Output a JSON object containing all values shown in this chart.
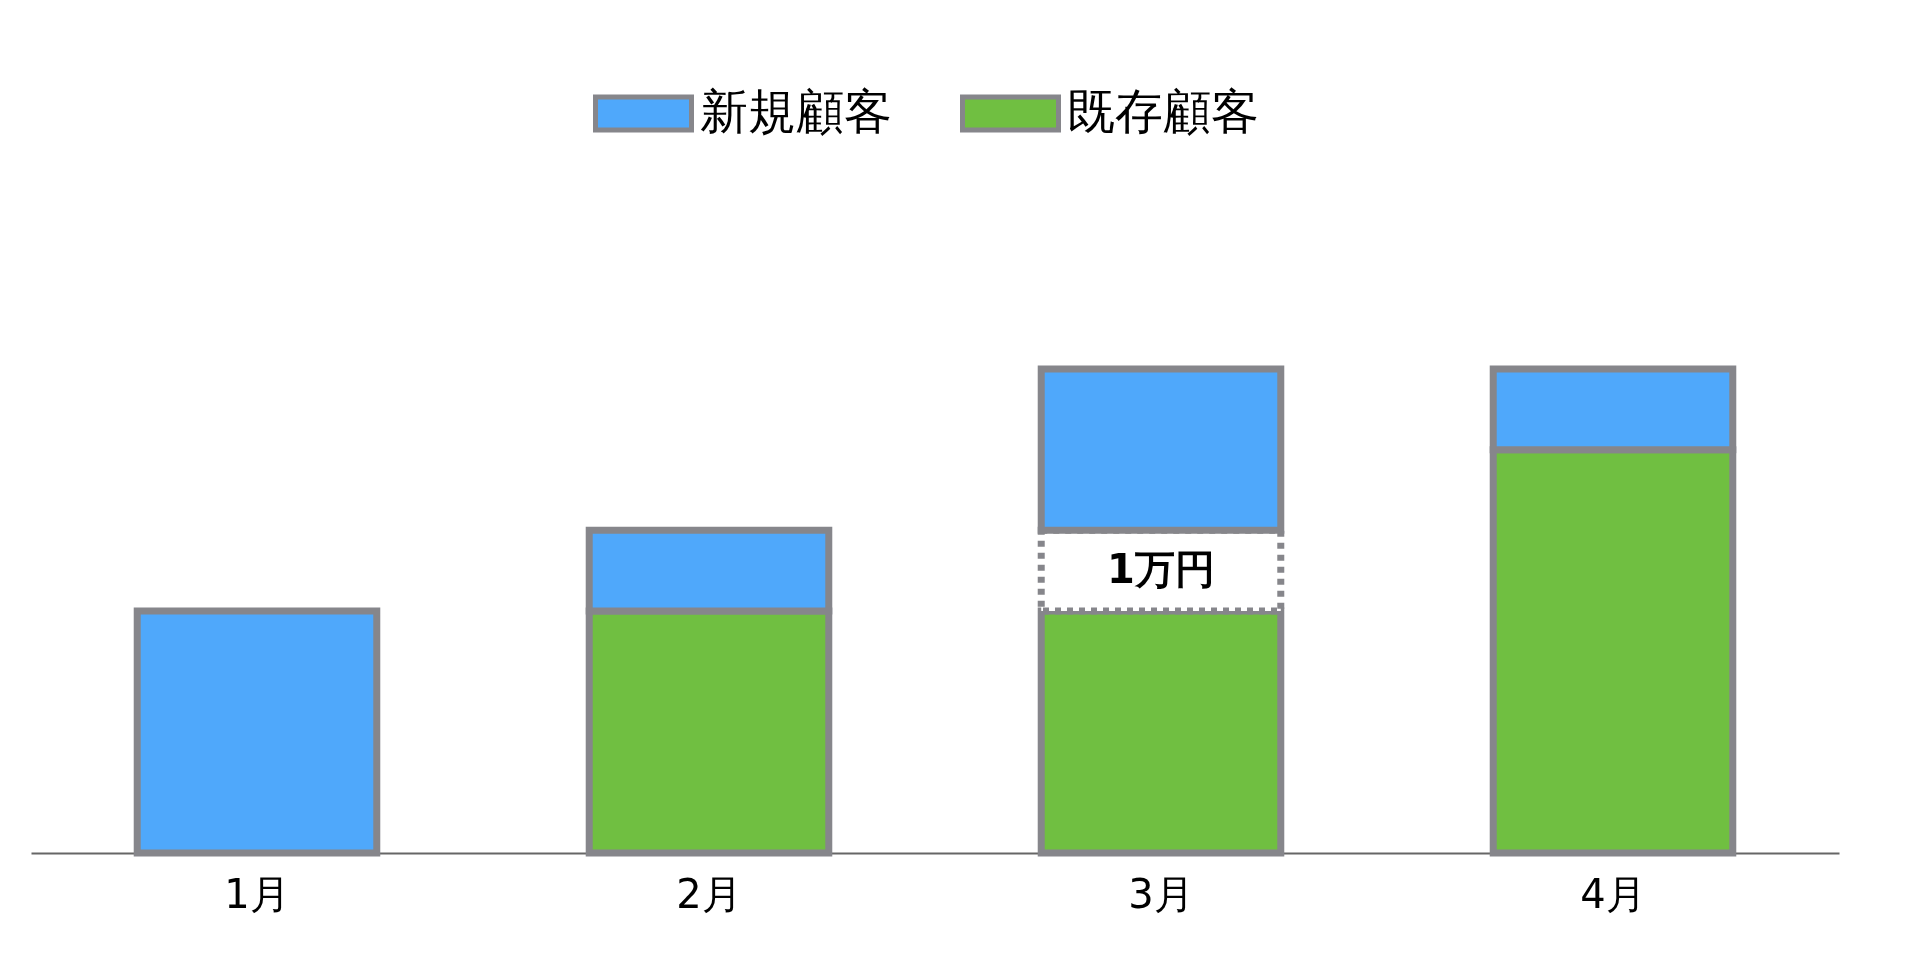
{
  "chart_data": {
    "type": "bar",
    "stacked": true,
    "legend": "top",
    "tick_labels": "x",
    "categories": [
      "1月",
      "2月",
      "3月",
      "4月"
    ],
    "series": [
      {
        "name": "既存顧客",
        "color": "#70bf41",
        "values": [
          null,
          3,
          3,
          5
        ]
      },
      {
        "color": "#ffffff",
        "line_style": "dotted",
        "values": [
          null,
          null,
          1,
          null
        ],
        "value_labels": [
          null,
          null,
          "1万円",
          null
        ]
      },
      {
        "name": "新規顧客",
        "color": "#4fa8fb",
        "values": [
          3,
          1,
          2,
          1
        ]
      }
    ]
  }
}
